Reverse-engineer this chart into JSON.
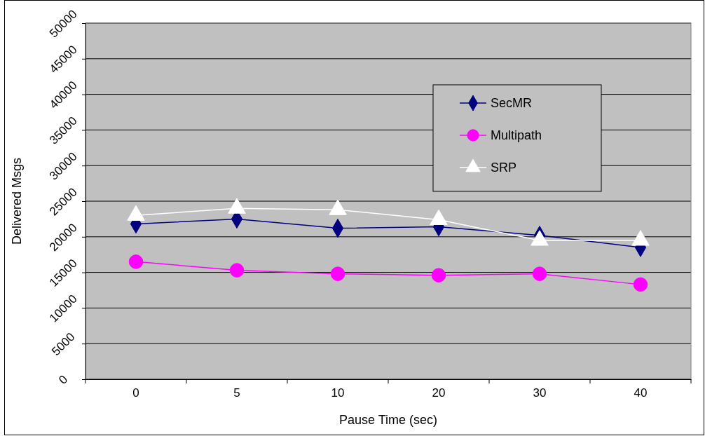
{
  "chart_data": {
    "type": "line",
    "xlabel": "Pause Time (sec)",
    "ylabel": "Delivered Msgs",
    "categories": [
      "0",
      "5",
      "10",
      "20",
      "30",
      "40"
    ],
    "ylim": [
      0,
      50000
    ],
    "yticks": [
      0,
      5000,
      10000,
      15000,
      20000,
      25000,
      30000,
      35000,
      40000,
      45000,
      50000
    ],
    "grid": "y",
    "legend": "top right",
    "series": [
      {
        "name": "SecMR",
        "color": "#000080",
        "marker": "diamond",
        "values": [
          21800,
          22500,
          21200,
          21400,
          20200,
          18500
        ]
      },
      {
        "name": "Multipath",
        "color": "#ff00ff",
        "marker": "circle",
        "values": [
          16500,
          15300,
          14800,
          14600,
          14800,
          13300
        ]
      },
      {
        "name": "SRP",
        "color": "#ffffff",
        "marker": "triangle",
        "values": [
          23000,
          24000,
          23800,
          22400,
          19500,
          19500
        ]
      }
    ]
  }
}
